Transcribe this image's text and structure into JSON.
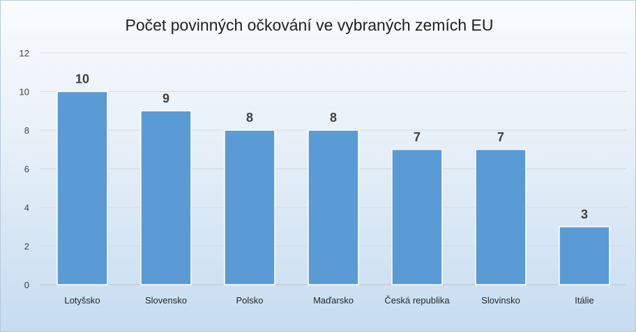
{
  "chart_data": {
    "type": "bar",
    "title": "Počet povinných očkování ve vybraných zemích EU",
    "categories": [
      "Lotyšsko",
      "Slovensko",
      "Polsko",
      "Maďarsko",
      "Česká republika",
      "Slovinsko",
      "Itálie"
    ],
    "values": [
      10,
      9,
      8,
      8,
      7,
      7,
      3
    ],
    "ylim": [
      0,
      12
    ],
    "yticks": [
      0,
      2,
      4,
      6,
      8,
      10,
      12
    ],
    "xlabel": "",
    "ylabel": "",
    "grid": true,
    "data_labels": true,
    "bar_color": "#5b9bd5",
    "legend": "none"
  }
}
